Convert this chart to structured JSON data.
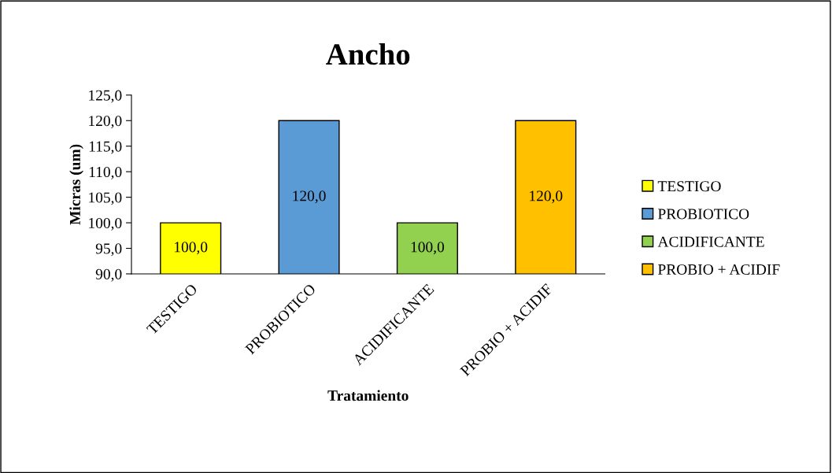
{
  "chart_data": {
    "type": "bar",
    "title": "Ancho",
    "xlabel": "Tratamiento",
    "ylabel": "Micras (um)",
    "categories": [
      "TESTIGO",
      "PROBIOTICO",
      "ACIDIFICANTE",
      "PROBIO + ACIDIF"
    ],
    "series": [
      {
        "name": "TESTIGO",
        "color": "#ffff00",
        "values": [
          100.0,
          null,
          null,
          null
        ],
        "value_labels": [
          "100,0",
          null,
          null,
          null
        ]
      },
      {
        "name": "PROBIOTICO",
        "color": "#5b9bd5",
        "values": [
          null,
          120.0,
          null,
          null
        ],
        "value_labels": [
          null,
          "120,0",
          null,
          null
        ]
      },
      {
        "name": "ACIDIFICANTE",
        "color": "#92d050",
        "values": [
          null,
          null,
          100.0,
          null
        ],
        "value_labels": [
          null,
          null,
          "100,0",
          null
        ]
      },
      {
        "name": "PROBIO + ACIDIF",
        "color": "#ffc000",
        "values": [
          null,
          null,
          null,
          120.0
        ],
        "value_labels": [
          null,
          null,
          null,
          "120,0"
        ]
      }
    ],
    "ylim": [
      90,
      125
    ],
    "yticks": [
      {
        "value": 90,
        "label": "90,0"
      },
      {
        "value": 95,
        "label": "95,0"
      },
      {
        "value": 100,
        "label": "100,0"
      },
      {
        "value": 105,
        "label": "105,0"
      },
      {
        "value": 110,
        "label": "110,0"
      },
      {
        "value": 115,
        "label": "115,0"
      },
      {
        "value": 120,
        "label": "120,0"
      },
      {
        "value": 125,
        "label": "125,0"
      }
    ],
    "grid": false,
    "legend": "right"
  }
}
